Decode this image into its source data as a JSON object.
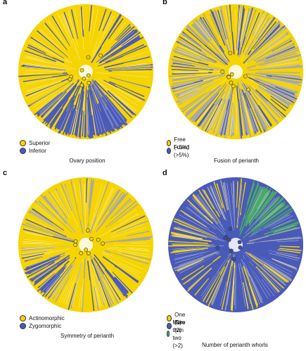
{
  "panels": [
    {
      "label": "a",
      "title": "Ovary position",
      "legend": [
        {
          "text": "Superior",
          "color": "#f5d400"
        },
        {
          "text": "Inferior",
          "color": "#4a5ab8"
        }
      ],
      "colors": {
        "major": "#f5d400",
        "minor": "#4a5ab8",
        "ambig": "#a8a8a8"
      }
    },
    {
      "label": "b",
      "title": "Fusion of perianth",
      "legend": [
        {
          "text": "Free (<5%)",
          "color": "#f5d400"
        },
        {
          "text": "Fused (>5%)",
          "color": "#4a5ab8"
        }
      ],
      "colors": {
        "major": "#f5d400",
        "minor": "#4a5ab8",
        "ambig": "#a8a8a8"
      }
    },
    {
      "label": "c",
      "title": "Symmetry of perianth",
      "legend": [
        {
          "text": "Actinomorphic",
          "color": "#f5d400"
        },
        {
          "text": "Zygomorphic",
          "color": "#4a5ab8"
        }
      ],
      "colors": {
        "major": "#f5d400",
        "minor": "#4a5ab8",
        "ambig": "#a8a8a8"
      }
    },
    {
      "label": "d",
      "title": "Number of perianth whorls",
      "legend": [
        {
          "text": "One (1)",
          "color": "#f5d400"
        },
        {
          "text": "Two (2)",
          "color": "#4a5ab8"
        },
        {
          "text": "More than two (>2)",
          "color": "#4aaa66"
        }
      ],
      "colors": {
        "major": "#4a5ab8",
        "minor": "#f5d400",
        "ambig": "#a8a8a8",
        "extra": "#4aaa66"
      }
    }
  ]
}
